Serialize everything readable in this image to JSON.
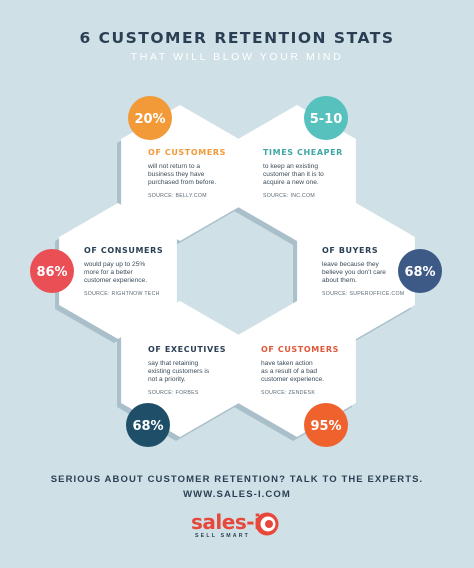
{
  "header": {
    "title": "6 CUSTOMER RETENTION STATS",
    "subtitle": "THAT WILL BLOW YOUR MIND"
  },
  "stats": [
    {
      "id": "s1",
      "value": "20%",
      "heading": "OF CUSTOMERS",
      "text": [
        "will not return to a",
        "business they have",
        "purchased from before."
      ],
      "source": "SOURCE: BELLY.COM",
      "badge_color": "#f29a38",
      "heading_color": "#f29a38"
    },
    {
      "id": "s2",
      "value": "5-10",
      "heading": "TIMES CHEAPER",
      "text": [
        "to keep an existing",
        "customer than it is to",
        "acquire a new one."
      ],
      "source": "SOURCE: INC.COM",
      "badge_color": "#56c1bd",
      "heading_color": "#3fa7a3"
    },
    {
      "id": "s3",
      "value": "86%",
      "heading": "OF CONSUMERS",
      "text": [
        "would pay up to 25%",
        "more for a better",
        "customer experience."
      ],
      "source": "SOURCE: RIGHTNOW TECH",
      "badge_color": "#ea4f55",
      "heading_color": "#2a3f54"
    },
    {
      "id": "s4",
      "value": "68%",
      "heading": "OF BUYERS",
      "text": [
        "leave because they",
        "believe you don't care",
        "about them."
      ],
      "source": "SOURCE: SUPEROFFICE.COM",
      "badge_color": "#3d5a86",
      "heading_color": "#2a3f54"
    },
    {
      "id": "s5",
      "value": "68%",
      "heading": "OF EXECUTIVES",
      "text": [
        "say that retaining",
        "existing customers is",
        "not a priority."
      ],
      "source": "SOURCE: FORBES",
      "badge_color": "#1f4f68",
      "heading_color": "#2a3f54"
    },
    {
      "id": "s6",
      "value": "95%",
      "heading": "OF CUSTOMERS",
      "text": [
        "have taken action",
        "as a result of a bad",
        "customer experience."
      ],
      "source": "SOURCE: ZENDESK",
      "badge_color": "#f0622d",
      "heading_color": "#e0573a"
    }
  ],
  "footer": {
    "line1": "SERIOUS ABOUT CUSTOMER RETENTION? TALK TO THE EXPERTS.",
    "line2": "WWW.SALES-I.COM"
  },
  "logo": {
    "word": "sales-i",
    "tagline": "SELL SMART",
    "color": "#e8473c"
  },
  "colors": {
    "background": "#cfe1e7",
    "hex_fill": "#ffffff",
    "hex_shadow": "#a9bfca",
    "text_dark": "#2a3f54"
  }
}
